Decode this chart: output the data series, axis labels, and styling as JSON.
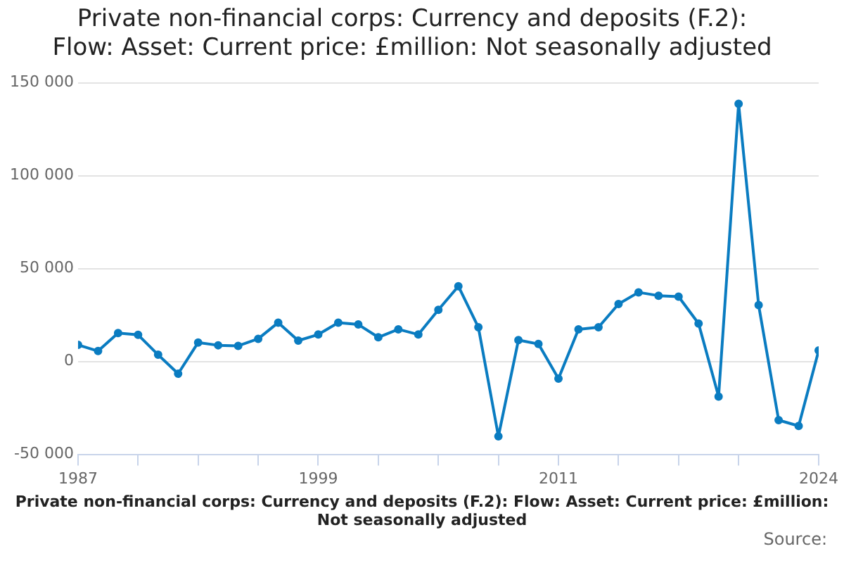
{
  "chart_data": {
    "type": "line",
    "title": "Private non-financial corps: Currency and deposits (F.2):\nFlow: Asset: Current price: £million: Not seasonally adjusted",
    "x": [
      1987,
      1988,
      1989,
      1990,
      1991,
      1992,
      1993,
      1994,
      1995,
      1996,
      1997,
      1998,
      1999,
      2000,
      2001,
      2002,
      2003,
      2004,
      2005,
      2006,
      2007,
      2008,
      2009,
      2010,
      2011,
      2012,
      2013,
      2014,
      2015,
      2016,
      2017,
      2018,
      2019,
      2020,
      2021,
      2022,
      2023,
      2024
    ],
    "series": [
      {
        "color": "#0a7cc1",
        "values": [
          8900,
          5600,
          15300,
          14300,
          3600,
          -6600,
          10200,
          8700,
          8400,
          12200,
          20900,
          11200,
          14500,
          20900,
          19900,
          13000,
          17300,
          14500,
          27800,
          40500,
          18400,
          -40300,
          11500,
          9400,
          -9200,
          17300,
          18400,
          30900,
          37200,
          35400,
          34900,
          20400,
          -18900,
          138700,
          30300,
          -31600,
          -34700,
          5900
        ]
      }
    ],
    "xlim": [
      1987,
      2024
    ],
    "xticks": [
      1987,
      {
        "value": 1990,
        "label": null
      },
      {
        "value": 1993,
        "label": null
      },
      {
        "value": 1996,
        "label": null
      },
      1999,
      {
        "value": 2002,
        "label": null
      },
      {
        "value": 2005,
        "label": null
      },
      {
        "value": 2008,
        "label": null
      },
      2011,
      {
        "value": 2014,
        "label": null
      },
      {
        "value": 2017,
        "label": null
      },
      {
        "value": 2020,
        "label": null
      },
      2024
    ],
    "ylim": [
      -50000,
      150000
    ],
    "yticks": [
      {
        "value": -50000,
        "label": "-50 000"
      },
      0,
      {
        "value": 50000,
        "label": "50 000"
      },
      {
        "value": 100000,
        "label": "100 000"
      },
      {
        "value": 150000,
        "label": "150 000"
      }
    ],
    "grid": "y",
    "marker": "circle",
    "line_style": "solid",
    "annotations": [
      "Private non-financial corps: Currency and deposits (F.2): Flow: Asset: Current price: £million: Not seasonally adjusted",
      "Source:"
    ]
  }
}
